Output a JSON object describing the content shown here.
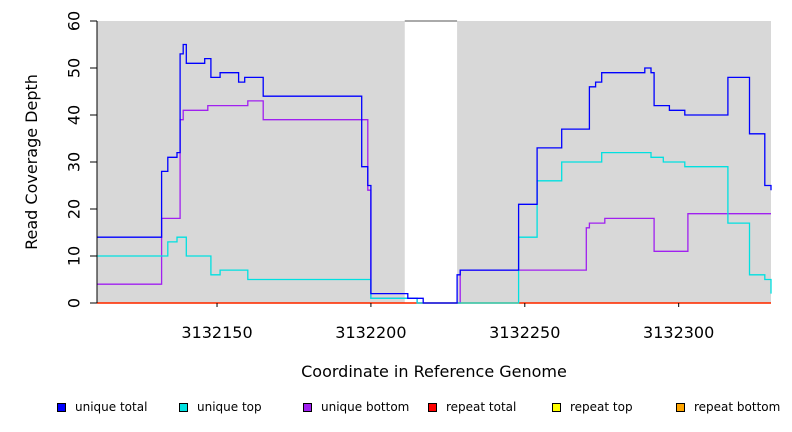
{
  "chart_data": {
    "type": "line",
    "xlabel": "Coordinate in Reference Genome",
    "ylabel": "Read Coverage Depth",
    "xlim": [
      3132111,
      3132330
    ],
    "ylim": [
      0,
      60
    ],
    "x_ticks": [
      3132150,
      3132200,
      3132250,
      3132300
    ],
    "x_tick_labels": [
      "3132150",
      "3132200",
      "3132250",
      "3132300"
    ],
    "y_ticks": [
      0,
      10,
      20,
      30,
      40,
      50,
      60
    ],
    "y_tick_labels": [
      "0",
      "10",
      "20",
      "30",
      "40",
      "50",
      "60"
    ],
    "panel_background": "#d8d8d8",
    "unshaded_interval": [
      3132211,
      3132228
    ],
    "legend_position": "bottom",
    "series": [
      {
        "name": "unique total",
        "color": "#0000ff",
        "x": [
          3132111,
          3132132,
          3132134,
          3132137,
          3132138,
          3132139,
          3132140,
          3132141,
          3132146,
          3132148,
          3132151,
          3132157,
          3132159,
          3132165,
          3132170,
          3132197,
          3132199,
          3132200,
          3132201,
          3132212,
          3132217,
          3132228,
          3132229,
          3132248,
          3132254,
          3132262,
          3132270,
          3132271,
          3132273,
          3132275,
          3132289,
          3132291,
          3132292,
          3132297,
          3132302,
          3132316,
          3132323,
          3132328,
          3132330
        ],
        "y": [
          14,
          28,
          31,
          32,
          53,
          55,
          51,
          51,
          52,
          48,
          49,
          47,
          48,
          44,
          44,
          29,
          25,
          2,
          2,
          1,
          0,
          6,
          7,
          21,
          33,
          37,
          37,
          46,
          47,
          49,
          50,
          49,
          42,
          41,
          40,
          48,
          36,
          25,
          24
        ]
      },
      {
        "name": "unique top",
        "color": "#00e0e0",
        "x": [
          3132111,
          3132132,
          3132134,
          3132137,
          3132140,
          3132148,
          3132151,
          3132160,
          3132178,
          3132200,
          3132212,
          3132215,
          3132248,
          3132254,
          3132262,
          3132275,
          3132291,
          3132295,
          3132297,
          3132302,
          3132316,
          3132323,
          3132328,
          3132330
        ],
        "y": [
          10,
          10,
          13,
          14,
          10,
          6,
          7,
          5,
          5,
          1,
          1,
          0,
          14,
          26,
          30,
          32,
          31,
          30,
          30,
          29,
          17,
          6,
          5,
          2
        ]
      },
      {
        "name": "unique bottom",
        "color": "#a020f0",
        "x": [
          3132111,
          3132132,
          3132138,
          3132139,
          3132140,
          3132147,
          3132160,
          3132165,
          3132197,
          3132199,
          3132200,
          3132212,
          3132215,
          3132228,
          3132229,
          3132270,
          3132271,
          3132276,
          3132292,
          3132303,
          3132330
        ],
        "y": [
          4,
          18,
          39,
          41,
          41,
          42,
          43,
          39,
          39,
          24,
          1,
          1,
          0,
          0,
          7,
          16,
          17,
          18,
          11,
          19,
          19
        ]
      },
      {
        "name": "repeat total",
        "color": "#ff0000",
        "x": [
          3132111,
          3132330
        ],
        "y": [
          0,
          0
        ]
      },
      {
        "name": "repeat top",
        "color": "#ffff00",
        "x": [
          3132111,
          3132330
        ],
        "y": [
          0,
          0
        ]
      },
      {
        "name": "repeat bottom",
        "color": "#ffa500",
        "x": [
          3132111,
          3132330
        ],
        "y": [
          0,
          0
        ]
      }
    ]
  }
}
